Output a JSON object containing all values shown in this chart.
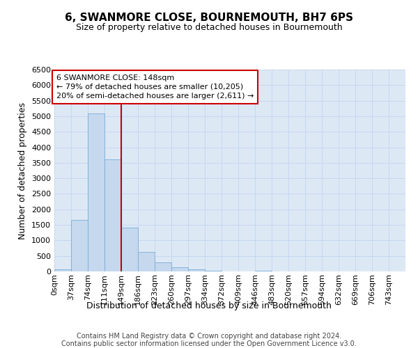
{
  "title": "6, SWANMORE CLOSE, BOURNEMOUTH, BH7 6PS",
  "subtitle": "Size of property relative to detached houses in Bournemouth",
  "xlabel": "Distribution of detached houses by size in Bournemouth",
  "ylabel": "Number of detached properties",
  "categories": [
    "0sqm",
    "37sqm",
    "74sqm",
    "111sqm",
    "149sqm",
    "186sqm",
    "223sqm",
    "260sqm",
    "297sqm",
    "334sqm",
    "372sqm",
    "409sqm",
    "446sqm",
    "483sqm",
    "520sqm",
    "557sqm",
    "594sqm",
    "632sqm",
    "669sqm",
    "706sqm",
    "743sqm"
  ],
  "bar_values": [
    60,
    1650,
    5080,
    3600,
    1420,
    620,
    290,
    140,
    60,
    20,
    5,
    0,
    30,
    0,
    0,
    0,
    0,
    0,
    0,
    0,
    0
  ],
  "bar_color": "#c5d8ee",
  "bar_edge_color": "#7aadd4",
  "vline_x": 4,
  "vline_color": "#cc0000",
  "annotation_text": "6 SWANMORE CLOSE: 148sqm\n← 79% of detached houses are smaller (10,205)\n20% of semi-detached houses are larger (2,611) →",
  "annotation_box_edgecolor": "#cc0000",
  "ylim": [
    0,
    6500
  ],
  "yticks": [
    0,
    500,
    1000,
    1500,
    2000,
    2500,
    3000,
    3500,
    4000,
    4500,
    5000,
    5500,
    6000,
    6500
  ],
  "grid_color": "#c5d8f0",
  "background_color": "#dde8f5",
  "footer_line1": "Contains HM Land Registry data © Crown copyright and database right 2024.",
  "footer_line2": "Contains public sector information licensed under the Open Government Licence v3.0.",
  "title_fontsize": 11,
  "subtitle_fontsize": 9,
  "axis_label_fontsize": 9,
  "tick_fontsize": 8,
  "footer_fontsize": 7,
  "annotation_fontsize": 8
}
